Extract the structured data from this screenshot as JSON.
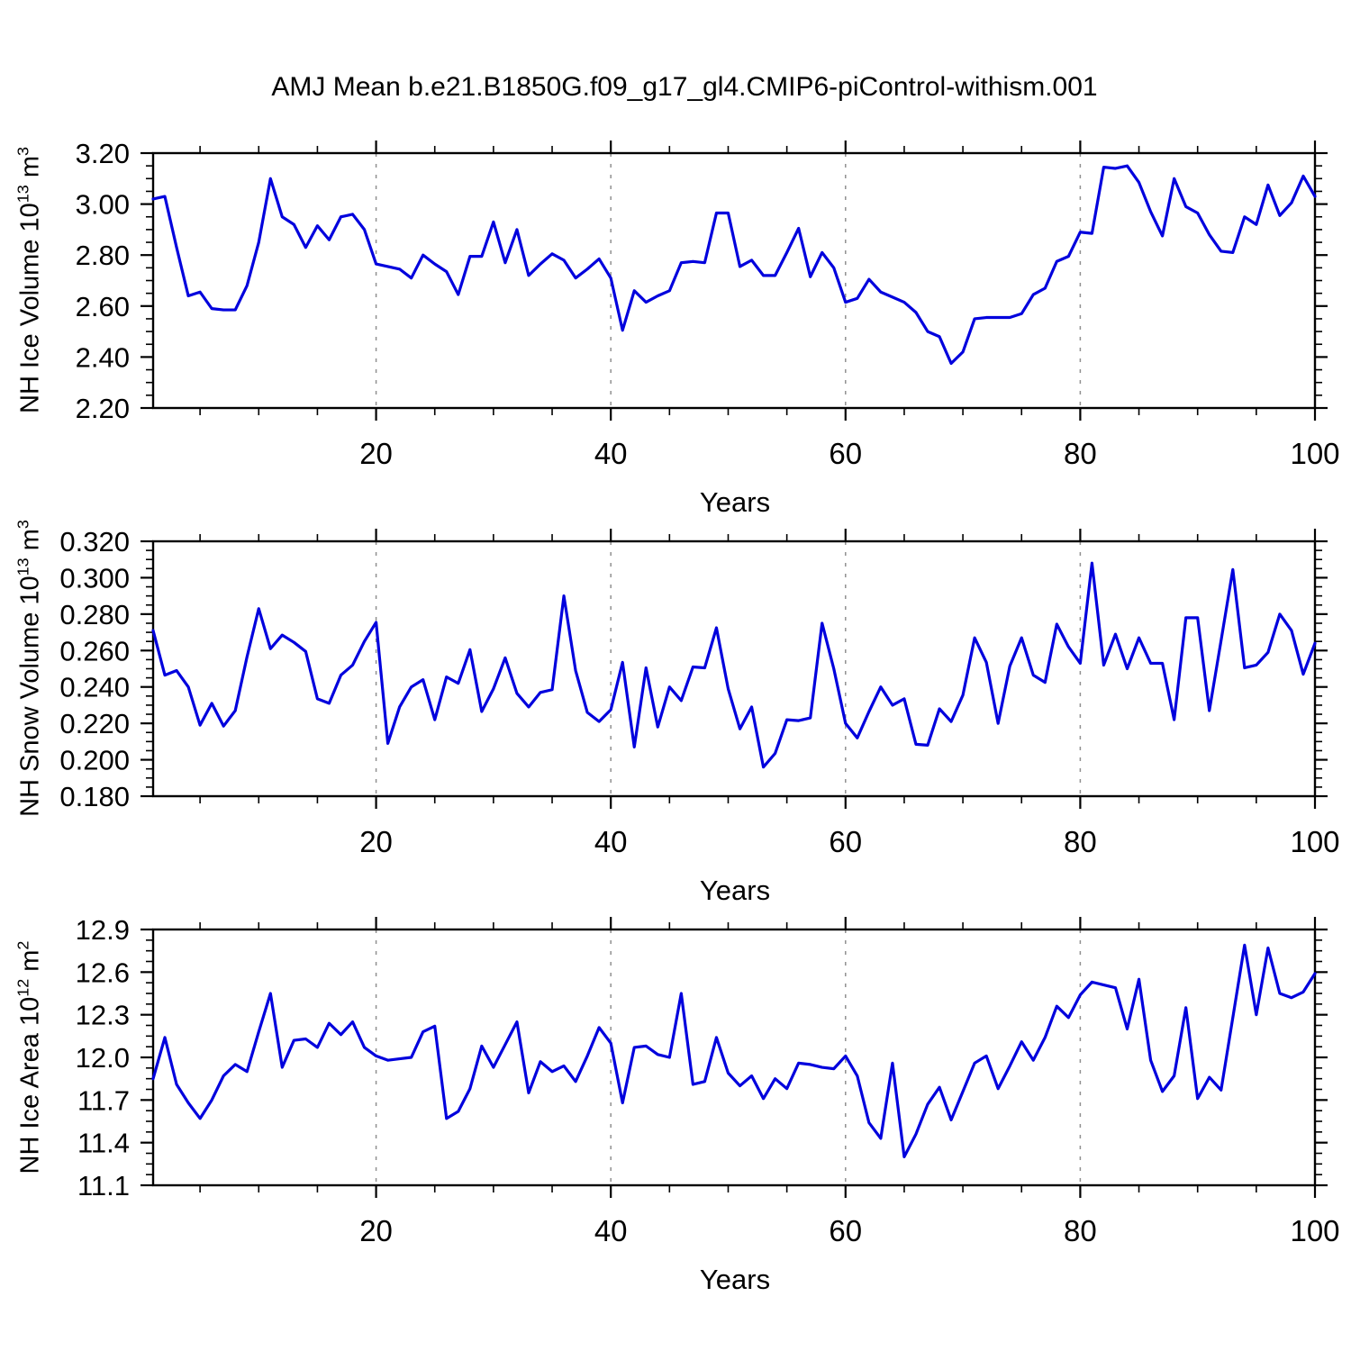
{
  "title": "AMJ Mean b.e21.B1850G.f09_g17_gl4.CMIP6-piControl-withism.001",
  "chart_data": [
    {
      "type": "line",
      "name": "nh-ice-volume",
      "ylabel": {
        "base": "NH Ice Volume 10",
        "exp": "13",
        "unit": " m",
        "unit_exp": "3"
      },
      "xlabel": "Years",
      "x_start": 1,
      "x_end": 100,
      "ylim": [
        2.2,
        3.2
      ],
      "ymajors": [
        2.2,
        2.4,
        2.6,
        2.8,
        3.0,
        3.2
      ],
      "ylabels": [
        "2.20",
        "2.40",
        "2.60",
        "2.80",
        "3.00",
        "3.20"
      ],
      "yminor_step": 0.05,
      "xticks": [
        20,
        40,
        60,
        80,
        100
      ],
      "xminors": [
        5,
        10,
        15,
        25,
        30,
        35,
        45,
        50,
        55,
        65,
        70,
        75,
        85,
        90,
        95
      ],
      "grid_x": [
        20,
        40,
        60,
        80
      ],
      "legend": "none",
      "grid": "vertical-dashed-only",
      "line_color": "#0000DD",
      "values": [
        3.02,
        3.03,
        2.83,
        2.64,
        2.655,
        2.59,
        2.585,
        2.585,
        2.68,
        2.85,
        3.1,
        2.95,
        2.92,
        2.83,
        2.915,
        2.86,
        2.95,
        2.96,
        2.9,
        2.765,
        2.755,
        2.745,
        2.71,
        2.8,
        2.765,
        2.735,
        2.645,
        2.795,
        2.795,
        2.93,
        2.77,
        2.9,
        2.72,
        2.765,
        2.805,
        2.78,
        2.71,
        2.745,
        2.785,
        2.71,
        2.505,
        2.66,
        2.615,
        2.64,
        2.66,
        2.77,
        2.775,
        2.77,
        2.965,
        2.965,
        2.755,
        2.78,
        2.72,
        2.72,
        2.81,
        2.905,
        2.715,
        2.81,
        2.75,
        2.615,
        2.63,
        2.705,
        2.655,
        2.635,
        2.615,
        2.575,
        2.5,
        2.48,
        2.375,
        2.42,
        2.55,
        2.555,
        2.555,
        2.555,
        2.57,
        2.645,
        2.67,
        2.775,
        2.795,
        2.89,
        2.885,
        3.145,
        3.14,
        3.15,
        3.085,
        2.97,
        2.875,
        3.1,
        2.99,
        2.965,
        2.88,
        2.815,
        2.81,
        2.95,
        2.92,
        3.075,
        2.955,
        3.005,
        3.11,
        3.03
      ]
    },
    {
      "type": "line",
      "name": "nh-snow-volume",
      "ylabel": {
        "base": "NH Snow Volume 10",
        "exp": "13",
        "unit": " m",
        "unit_exp": "3"
      },
      "xlabel": "Years",
      "x_start": 1,
      "x_end": 100,
      "ylim": [
        0.18,
        0.32
      ],
      "ymajors": [
        0.18,
        0.2,
        0.22,
        0.24,
        0.26,
        0.28,
        0.3,
        0.32
      ],
      "ylabels": [
        "0.180",
        "0.200",
        "0.220",
        "0.240",
        "0.260",
        "0.280",
        "0.300",
        "0.320"
      ],
      "yminor_step": 0.005,
      "xticks": [
        20,
        40,
        60,
        80,
        100
      ],
      "xminors": [
        5,
        10,
        15,
        25,
        30,
        35,
        45,
        50,
        55,
        65,
        70,
        75,
        85,
        90,
        95
      ],
      "grid_x": [
        20,
        40,
        60,
        80
      ],
      "legend": "none",
      "grid": "vertical-dashed-only",
      "line_color": "#0000DD",
      "values": [
        0.271,
        0.2465,
        0.249,
        0.24,
        0.219,
        0.231,
        0.2185,
        0.227,
        0.2565,
        0.283,
        0.261,
        0.2685,
        0.2645,
        0.2595,
        0.2335,
        0.231,
        0.2465,
        0.252,
        0.265,
        0.2755,
        0.209,
        0.229,
        0.24,
        0.244,
        0.222,
        0.2455,
        0.242,
        0.2605,
        0.2265,
        0.239,
        0.256,
        0.2365,
        0.229,
        0.237,
        0.2385,
        0.29,
        0.249,
        0.226,
        0.221,
        0.2275,
        0.2535,
        0.207,
        0.2505,
        0.218,
        0.24,
        0.2325,
        0.251,
        0.2505,
        0.2725,
        0.239,
        0.217,
        0.229,
        0.196,
        0.2035,
        0.222,
        0.2215,
        0.223,
        0.275,
        0.25,
        0.22,
        0.212,
        0.2265,
        0.24,
        0.23,
        0.2335,
        0.2085,
        0.208,
        0.228,
        0.221,
        0.2355,
        0.267,
        0.2535,
        0.22,
        0.2515,
        0.267,
        0.2465,
        0.2425,
        0.2745,
        0.262,
        0.253,
        0.308,
        0.252,
        0.269,
        0.25,
        0.267,
        0.253,
        0.253,
        0.222,
        0.278,
        0.278,
        0.227,
        0.2655,
        0.3045,
        0.2505,
        0.252,
        0.259,
        0.28,
        0.271,
        0.247,
        0.264
      ]
    },
    {
      "type": "line",
      "name": "nh-ice-area",
      "ylabel": {
        "base": "NH Ice Area 10",
        "exp": "12",
        "unit": " m",
        "unit_exp": "2"
      },
      "xlabel": "Years",
      "x_start": 1,
      "x_end": 100,
      "ylim": [
        11.1,
        12.9
      ],
      "ymajors": [
        11.1,
        11.4,
        11.7,
        12.0,
        12.3,
        12.6,
        12.9
      ],
      "ylabels": [
        "11.1",
        "11.4",
        "11.7",
        "12.0",
        "12.3",
        "12.6",
        "12.9"
      ],
      "yminor_step": 0.075,
      "xticks": [
        20,
        40,
        60,
        80,
        100
      ],
      "xminors": [
        5,
        10,
        15,
        25,
        30,
        35,
        45,
        50,
        55,
        65,
        70,
        75,
        85,
        90,
        95
      ],
      "grid_x": [
        20,
        40,
        60,
        80
      ],
      "legend": "none",
      "grid": "vertical-dashed-only",
      "line_color": "#0000DD",
      "values": [
        11.85,
        12.14,
        11.81,
        11.68,
        11.57,
        11.7,
        11.87,
        11.95,
        11.9,
        12.18,
        12.45,
        11.93,
        12.12,
        12.13,
        12.07,
        12.24,
        12.16,
        12.25,
        12.07,
        12.01,
        11.98,
        11.99,
        12.0,
        12.18,
        12.22,
        11.57,
        11.62,
        11.78,
        12.08,
        11.93,
        12.09,
        12.25,
        11.75,
        11.97,
        11.9,
        11.94,
        11.83,
        12.01,
        12.21,
        12.1,
        11.68,
        12.07,
        12.08,
        12.02,
        12.0,
        12.45,
        11.81,
        11.83,
        12.14,
        11.89,
        11.8,
        11.87,
        11.71,
        11.85,
        11.78,
        11.96,
        11.95,
        11.93,
        11.92,
        12.01,
        11.87,
        11.54,
        11.43,
        11.96,
        11.3,
        11.46,
        11.67,
        11.79,
        11.56,
        11.76,
        11.96,
        12.01,
        11.78,
        11.94,
        12.11,
        11.98,
        12.14,
        12.36,
        12.28,
        12.44,
        12.53,
        12.51,
        12.49,
        12.2,
        12.55,
        11.98,
        11.76,
        11.87,
        12.35,
        11.71,
        11.86,
        11.77,
        12.28,
        12.79,
        12.3,
        12.77,
        12.45,
        12.42,
        12.46,
        12.59
      ]
    }
  ],
  "style": {
    "axis_color": "#000000",
    "grid_color": "#909090",
    "tick_label_color": "#000000"
  }
}
